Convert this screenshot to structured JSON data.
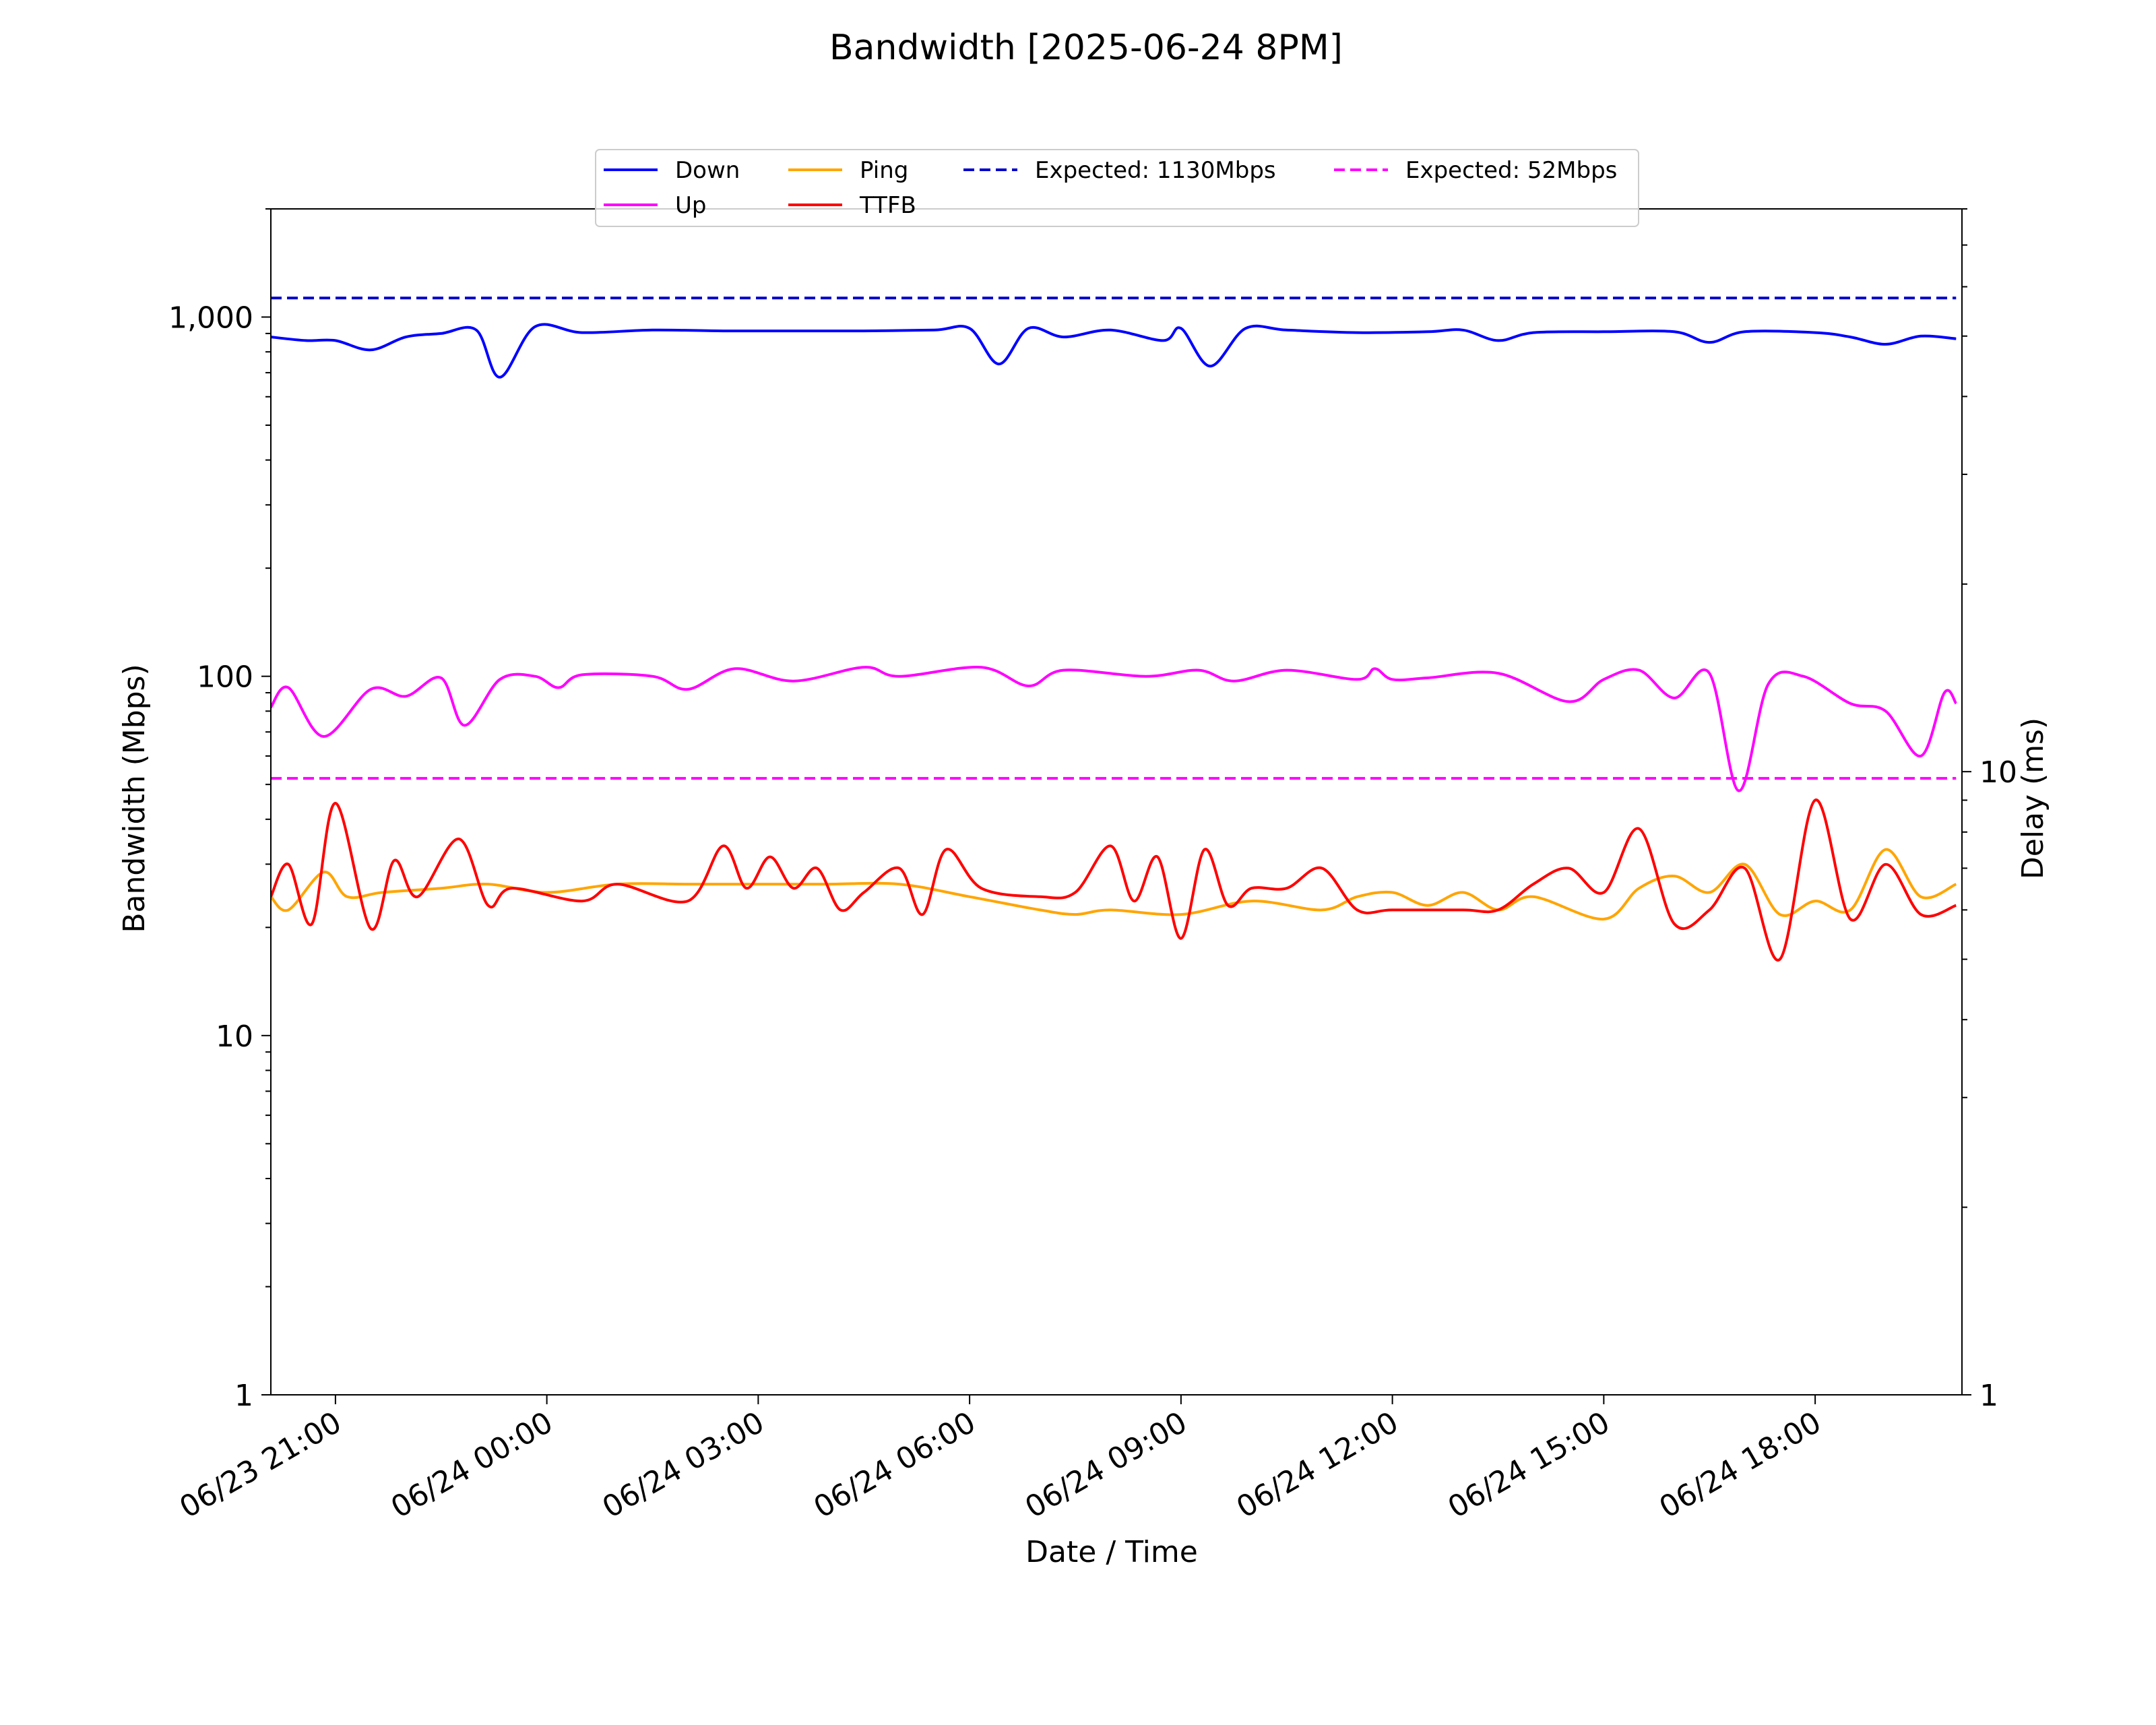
{
  "chart_data": {
    "type": "line",
    "title": "Bandwidth [2025-06-24 8PM]",
    "xlabel": "Date / Time",
    "ylabel": "Bandwidth (Mbps)",
    "y2label": "Delay (ms)",
    "yscale": "log",
    "y2scale": "log",
    "ylim": [
      1,
      2000
    ],
    "y2lim": [
      1,
      80
    ],
    "xlim": [
      "2025-06-23 20:05",
      "2025-06-24 20:05"
    ],
    "xticks": [
      {
        "t": "2025-06-23 21:00",
        "label": "06/23 21:00"
      },
      {
        "t": "2025-06-24 00:00",
        "label": "06/24 00:00"
      },
      {
        "t": "2025-06-24 03:00",
        "label": "06/24 03:00"
      },
      {
        "t": "2025-06-24 06:00",
        "label": "06/24 06:00"
      },
      {
        "t": "2025-06-24 09:00",
        "label": "06/24 09:00"
      },
      {
        "t": "2025-06-24 12:00",
        "label": "06/24 12:00"
      },
      {
        "t": "2025-06-24 15:00",
        "label": "06/24 15:00"
      },
      {
        "t": "2025-06-24 18:00",
        "label": "06/24 18:00"
      }
    ],
    "yticks": [
      {
        "v": 1,
        "label": "1"
      },
      {
        "v": 10,
        "label": "10"
      },
      {
        "v": 100,
        "label": "100"
      },
      {
        "v": 1000,
        "label": "1,000"
      }
    ],
    "y2ticks": [
      {
        "v": 1,
        "label": "1"
      },
      {
        "v": 10,
        "label": "10"
      }
    ],
    "legend_placement": "top-center",
    "series": [
      {
        "name": "Down",
        "axis": "left",
        "color": "#0000ff",
        "style": "solid",
        "x": [
          "2025-06-23 20:05",
          "2025-06-23 20:35",
          "2025-06-23 21:00",
          "2025-06-23 21:30",
          "2025-06-23 22:00",
          "2025-06-23 22:30",
          "2025-06-23 23:00",
          "2025-06-23 23:20",
          "2025-06-23 23:50",
          "2025-06-24 00:30",
          "2025-06-24 01:30",
          "2025-06-24 02:30",
          "2025-06-24 03:30",
          "2025-06-24 04:30",
          "2025-06-24 05:30",
          "2025-06-24 06:00",
          "2025-06-24 06:25",
          "2025-06-24 06:50",
          "2025-06-24 07:20",
          "2025-06-24 08:00",
          "2025-06-24 08:45",
          "2025-06-24 09:00",
          "2025-06-24 09:25",
          "2025-06-24 09:55",
          "2025-06-24 10:30",
          "2025-06-24 11:30",
          "2025-06-24 12:30",
          "2025-06-24 13:00",
          "2025-06-24 13:30",
          "2025-06-24 14:00",
          "2025-06-24 15:00",
          "2025-06-24 16:00",
          "2025-06-24 16:30",
          "2025-06-24 17:00",
          "2025-06-24 18:00",
          "2025-06-24 18:30",
          "2025-06-24 19:00",
          "2025-06-24 19:30",
          "2025-06-24 20:00"
        ],
        "values": [
          880,
          860,
          860,
          810,
          880,
          900,
          920,
          680,
          940,
          905,
          920,
          915,
          915,
          915,
          920,
          930,
          740,
          930,
          880,
          920,
          860,
          930,
          730,
          930,
          920,
          905,
          910,
          920,
          860,
          905,
          910,
          910,
          850,
          910,
          905,
          880,
          840,
          885,
          870
        ]
      },
      {
        "name": "Up",
        "axis": "left",
        "color": "#ff00ff",
        "style": "solid",
        "x": [
          "2025-06-23 20:05",
          "2025-06-23 20:20",
          "2025-06-23 20:50",
          "2025-06-23 21:30",
          "2025-06-23 22:00",
          "2025-06-23 22:30",
          "2025-06-23 22:50",
          "2025-06-23 23:20",
          "2025-06-23 23:50",
          "2025-06-24 00:10",
          "2025-06-24 00:30",
          "2025-06-24 01:30",
          "2025-06-24 02:00",
          "2025-06-24 02:40",
          "2025-06-24 03:30",
          "2025-06-24 04:30",
          "2025-06-24 05:00",
          "2025-06-24 06:10",
          "2025-06-24 06:50",
          "2025-06-24 07:20",
          "2025-06-24 08:30",
          "2025-06-24 09:15",
          "2025-06-24 09:45",
          "2025-06-24 10:30",
          "2025-06-24 11:30",
          "2025-06-24 11:45",
          "2025-06-24 12:00",
          "2025-06-24 12:30",
          "2025-06-24 13:30",
          "2025-06-24 14:30",
          "2025-06-24 15:00",
          "2025-06-24 15:30",
          "2025-06-24 16:00",
          "2025-06-24 16:30",
          "2025-06-24 16:55",
          "2025-06-24 17:20",
          "2025-06-24 17:50",
          "2025-06-24 18:30",
          "2025-06-24 19:00",
          "2025-06-24 19:30",
          "2025-06-24 19:50",
          "2025-06-24 20:00"
        ],
        "values": [
          82,
          93,
          68,
          92,
          88,
          99,
          73,
          98,
          100,
          93,
          101,
          100,
          92,
          105,
          97,
          106,
          100,
          106,
          94,
          104,
          100,
          104,
          97,
          104,
          98,
          105,
          98,
          99,
          102,
          85,
          98,
          104,
          87,
          102,
          48,
          95,
          100,
          84,
          80,
          60,
          90,
          84
        ]
      },
      {
        "name": "Ping",
        "axis": "right",
        "color": "#ffa500",
        "style": "solid",
        "x": [
          "2025-06-23 20:05",
          "2025-06-23 20:20",
          "2025-06-23 20:50",
          "2025-06-23 21:10",
          "2025-06-23 21:40",
          "2025-06-23 22:30",
          "2025-06-23 23:10",
          "2025-06-24 00:00",
          "2025-06-24 01:00",
          "2025-06-24 02:00",
          "2025-06-24 03:00",
          "2025-06-24 04:00",
          "2025-06-24 05:00",
          "2025-06-24 06:00",
          "2025-06-24 07:00",
          "2025-06-24 07:30",
          "2025-06-24 08:00",
          "2025-06-24 09:00",
          "2025-06-24 10:00",
          "2025-06-24 11:00",
          "2025-06-24 11:30",
          "2025-06-24 12:00",
          "2025-06-24 12:30",
          "2025-06-24 13:00",
          "2025-06-24 13:30",
          "2025-06-24 14:00",
          "2025-06-24 15:00",
          "2025-06-24 15:30",
          "2025-06-24 16:00",
          "2025-06-24 16:30",
          "2025-06-24 17:00",
          "2025-06-24 17:30",
          "2025-06-24 18:00",
          "2025-06-24 18:30",
          "2025-06-24 19:00",
          "2025-06-24 19:30",
          "2025-06-24 20:00"
        ],
        "values": [
          6.3,
          6.0,
          6.9,
          6.3,
          6.4,
          6.5,
          6.6,
          6.4,
          6.6,
          6.6,
          6.6,
          6.6,
          6.6,
          6.3,
          6.0,
          5.9,
          6.0,
          5.9,
          6.2,
          6.0,
          6.3,
          6.4,
          6.1,
          6.4,
          6.0,
          6.3,
          5.8,
          6.5,
          6.8,
          6.4,
          7.1,
          5.9,
          6.2,
          6.0,
          7.5,
          6.3,
          6.6
        ]
      },
      {
        "name": "TTFB",
        "axis": "right",
        "color": "#ff0000",
        "style": "solid",
        "x": [
          "2025-06-23 20:05",
          "2025-06-23 20:20",
          "2025-06-23 20:40",
          "2025-06-23 21:00",
          "2025-06-23 21:30",
          "2025-06-23 21:50",
          "2025-06-23 22:10",
          "2025-06-23 22:45",
          "2025-06-23 23:10",
          "2025-06-23 23:30",
          "2025-06-24 00:30",
          "2025-06-24 01:00",
          "2025-06-24 02:00",
          "2025-06-24 02:30",
          "2025-06-24 02:50",
          "2025-06-24 03:10",
          "2025-06-24 03:30",
          "2025-06-24 03:50",
          "2025-06-24 04:10",
          "2025-06-24 04:30",
          "2025-06-24 05:00",
          "2025-06-24 05:20",
          "2025-06-24 05:40",
          "2025-06-24 06:10",
          "2025-06-24 07:00",
          "2025-06-24 07:30",
          "2025-06-24 08:00",
          "2025-06-24 08:20",
          "2025-06-24 08:40",
          "2025-06-24 09:00",
          "2025-06-24 09:20",
          "2025-06-24 09:40",
          "2025-06-24 10:00",
          "2025-06-24 10:30",
          "2025-06-24 11:00",
          "2025-06-24 11:30",
          "2025-06-24 12:00",
          "2025-06-24 13:00",
          "2025-06-24 13:30",
          "2025-06-24 14:00",
          "2025-06-24 14:30",
          "2025-06-24 15:00",
          "2025-06-24 15:30",
          "2025-06-24 16:00",
          "2025-06-24 16:30",
          "2025-06-24 17:00",
          "2025-06-24 17:30",
          "2025-06-24 18:00",
          "2025-06-24 18:30",
          "2025-06-24 19:00",
          "2025-06-24 19:30",
          "2025-06-24 20:00"
        ],
        "values": [
          6.3,
          7.1,
          5.7,
          8.9,
          5.6,
          7.2,
          6.3,
          7.8,
          6.1,
          6.5,
          6.2,
          6.6,
          6.2,
          7.6,
          6.5,
          7.3,
          6.5,
          7.0,
          6.0,
          6.4,
          7.0,
          5.9,
          7.5,
          6.5,
          6.3,
          6.4,
          7.6,
          6.2,
          7.3,
          5.4,
          7.5,
          6.1,
          6.5,
          6.5,
          7.0,
          6.0,
          6.0,
          6.0,
          6.0,
          6.6,
          7.0,
          6.4,
          8.1,
          5.7,
          6.0,
          7.0,
          5.0,
          9.0,
          5.8,
          7.1,
          5.9,
          6.1
        ]
      },
      {
        "name": "Expected: 1130Mbps",
        "axis": "left",
        "color": "#0000cc",
        "style": "dashed",
        "x": [
          "2025-06-23 20:05",
          "2025-06-24 20:00"
        ],
        "values": [
          1130,
          1130
        ]
      },
      {
        "name": "Expected: 52Mbps",
        "axis": "left",
        "color": "#ff00ff",
        "style": "dashed",
        "x": [
          "2025-06-23 20:05",
          "2025-06-24 20:00"
        ],
        "values": [
          52,
          52
        ]
      }
    ],
    "legend": {
      "columns": [
        [
          "Down",
          "Up"
        ],
        [
          "Ping",
          "TTFB"
        ],
        [
          "Expected: 1130Mbps"
        ],
        [
          "Expected: 52Mbps"
        ]
      ]
    }
  }
}
